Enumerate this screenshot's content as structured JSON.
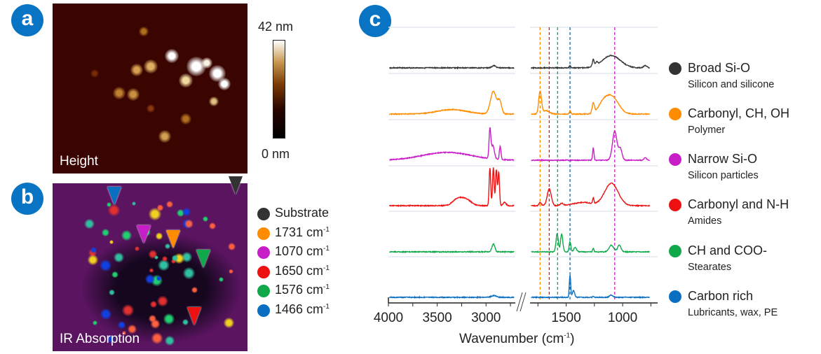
{
  "panels": {
    "a": {
      "badge": "a",
      "label": "Height",
      "colorbar_max": "42 nm",
      "colorbar_min": "0 nm"
    },
    "b": {
      "badge": "b",
      "label": "IR Absorption",
      "legend": [
        {
          "label": "Substrate",
          "sup": "",
          "color": "#333333"
        },
        {
          "label": "1731 cm",
          "sup": "-1",
          "color": "#ff8c00"
        },
        {
          "label": "1070 cm",
          "sup": "-1",
          "color": "#c81ec8"
        },
        {
          "label": "1650 cm",
          "sup": "-1",
          "color": "#ee1111"
        },
        {
          "label": "1576 cm",
          "sup": "-1",
          "color": "#10a84a"
        },
        {
          "label": "1466 cm",
          "sup": "-1",
          "color": "#0a6fc0"
        }
      ]
    },
    "c": {
      "badge": "c"
    }
  },
  "chart_data": {
    "type": "line",
    "xlabel": "Wavenumber (cm",
    "xlabel_sup": "-1",
    "xlabel_close": ")",
    "x_reversed": true,
    "axis_break": true,
    "xlim_left": [
      4000,
      2700
    ],
    "xlim_right": [
      1820,
      690
    ],
    "xticks_left": [
      "4000",
      "3500",
      "3000"
    ],
    "xticks_right": [
      "1500",
      "1000"
    ],
    "reference_lines": [
      {
        "x": 1731,
        "color": "#ff8c00"
      },
      {
        "x": 1650,
        "color": "#ee1111"
      },
      {
        "x": 1576,
        "color": "#10a84a"
      },
      {
        "x": 1466,
        "color": "#0a6fc0"
      },
      {
        "x": 1070,
        "color": "#c81ec8"
      }
    ],
    "series": [
      {
        "name": "Broad Si-O",
        "description": "Silicon and silicone",
        "color": "#333333",
        "peaks": [
          [
            2920,
            0.1,
            20
          ],
          [
            1100,
            0.55,
            80
          ],
          [
            1260,
            0.3,
            8
          ],
          [
            1230,
            0.15,
            8
          ],
          [
            800,
            0.1,
            15
          ],
          [
            1466,
            0.1,
            6
          ]
        ]
      },
      {
        "name": "Carbonyl, CH, OH",
        "description": "Polymer",
        "color": "#ff8c00",
        "peaks": [
          [
            2925,
            1.0,
            30
          ],
          [
            2860,
            0.55,
            20
          ],
          [
            3350,
            0.2,
            150
          ],
          [
            1731,
            1.0,
            12
          ],
          [
            1680,
            0.15,
            30
          ],
          [
            1260,
            0.45,
            10
          ],
          [
            1100,
            0.8,
            60
          ],
          [
            1466,
            0.15,
            6
          ],
          [
            1180,
            0.3,
            40
          ]
        ]
      },
      {
        "name": "Narrow Si-O",
        "description": "Silicon particles",
        "color": "#c81ec8",
        "peaks": [
          [
            2960,
            1.3,
            9
          ],
          [
            2930,
            0.6,
            15
          ],
          [
            2855,
            0.6,
            8
          ],
          [
            3400,
            0.35,
            250
          ],
          [
            1260,
            0.55,
            6
          ],
          [
            1070,
            1.3,
            20
          ],
          [
            1020,
            0.5,
            15
          ],
          [
            800,
            0.12,
            10
          ]
        ]
      },
      {
        "name": "Carbonyl and N-H",
        "description": "Amides",
        "color": "#ee1111",
        "peaks": [
          [
            2960,
            1.7,
            8
          ],
          [
            2925,
            1.7,
            8
          ],
          [
            2895,
            1.6,
            8
          ],
          [
            2870,
            1.5,
            8
          ],
          [
            3290,
            0.3,
            50
          ],
          [
            3200,
            0.25,
            50
          ],
          [
            2810,
            0.15,
            15
          ],
          [
            1650,
            0.75,
            18
          ],
          [
            1540,
            0.1,
            15
          ],
          [
            1100,
            1.0,
            60
          ],
          [
            1260,
            0.25,
            6
          ],
          [
            1350,
            0.15,
            80
          ],
          [
            1731,
            0.15,
            10
          ]
        ]
      },
      {
        "name": "CH and COO-",
        "description": "Stearates",
        "color": "#10a84a",
        "peaks": [
          [
            2925,
            0.35,
            15
          ],
          [
            1580,
            0.8,
            10
          ],
          [
            1540,
            0.8,
            10
          ],
          [
            1466,
            0.45,
            8
          ],
          [
            1420,
            0.2,
            12
          ],
          [
            1260,
            0.15,
            6
          ],
          [
            1100,
            0.3,
            20
          ],
          [
            1030,
            0.3,
            15
          ]
        ]
      },
      {
        "name": "Carbon rich",
        "description": "Lubricants, wax, PE",
        "color": "#0a6fc0",
        "peaks": [
          [
            1466,
            1.0,
            6
          ],
          [
            1435,
            0.3,
            10
          ],
          [
            2920,
            0.08,
            25
          ],
          [
            1100,
            0.1,
            15
          ],
          [
            1260,
            0.05,
            5
          ]
        ]
      }
    ]
  }
}
